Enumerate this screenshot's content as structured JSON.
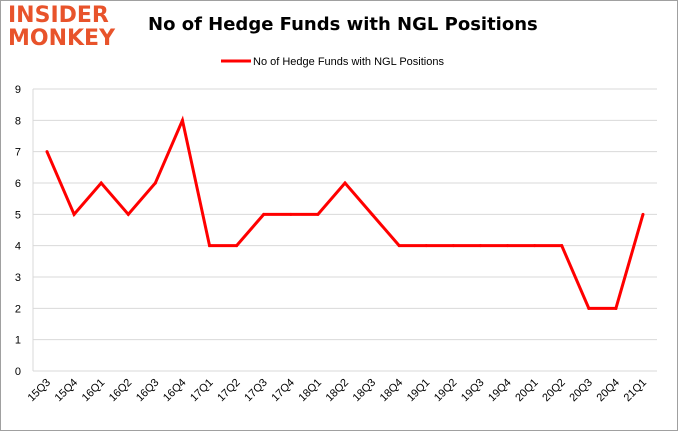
{
  "logo": {
    "line1": "INSIDER",
    "line2": "MONKEY"
  },
  "colors": {
    "series": "#ff0000",
    "grid": "#d9d9d9",
    "logo": "#e8532b"
  },
  "chart_data": {
    "type": "line",
    "title": "No of Hedge Funds with NGL Positions",
    "xlabel": "",
    "ylabel": "",
    "ylim": [
      0,
      9
    ],
    "yticks": [
      0,
      1,
      2,
      3,
      4,
      5,
      6,
      7,
      8,
      9
    ],
    "grid": true,
    "legend": "top-center",
    "categories": [
      "15Q3",
      "15Q4",
      "16Q1",
      "16Q2",
      "16Q3",
      "16Q4",
      "17Q1",
      "17Q2",
      "17Q3",
      "17Q4",
      "18Q1",
      "18Q2",
      "18Q3",
      "18Q4",
      "19Q1",
      "19Q2",
      "19Q3",
      "19Q4",
      "20Q1",
      "20Q2",
      "20Q3",
      "20Q4",
      "21Q1"
    ],
    "series": [
      {
        "name": "No of Hedge Funds with NGL Positions",
        "values": [
          7,
          5,
          6,
          5,
          6,
          8,
          4,
          4,
          5,
          5,
          5,
          6,
          5,
          4,
          4,
          4,
          4,
          4,
          4,
          4,
          2,
          2,
          5
        ]
      }
    ]
  }
}
